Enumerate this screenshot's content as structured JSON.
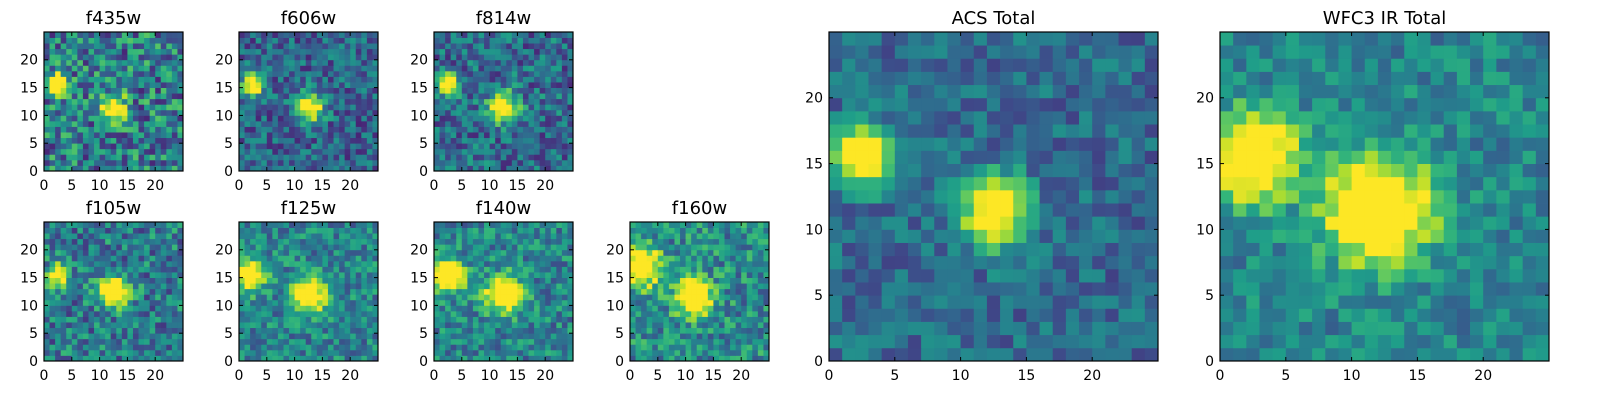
{
  "chart_data": [
    {
      "type": "heatmap",
      "title": "f435w",
      "xticks": [
        "0",
        "5",
        "10",
        "15",
        "20"
      ],
      "yticks": [
        "0",
        "5",
        "10",
        "15",
        "20"
      ],
      "xlim": [
        0,
        25
      ],
      "ylim": [
        0,
        25
      ],
      "colormap": "viridis",
      "blobs": [
        {
          "x": 2.5,
          "y": 15.5,
          "amp": 1.0,
          "sigma": 1.3
        },
        {
          "x": 12.5,
          "y": 11.5,
          "amp": 0.85,
          "sigma": 1.6
        }
      ],
      "noise": 0.32,
      "bg": 0.42
    },
    {
      "type": "heatmap",
      "title": "f606w",
      "xticks": [
        "0",
        "5",
        "10",
        "15",
        "20"
      ],
      "yticks": [
        "0",
        "5",
        "10",
        "15",
        "20"
      ],
      "xlim": [
        0,
        25
      ],
      "ylim": [
        0,
        25
      ],
      "colormap": "viridis",
      "blobs": [
        {
          "x": 2.5,
          "y": 15.5,
          "amp": 1.0,
          "sigma": 1.3
        },
        {
          "x": 12.5,
          "y": 11.5,
          "amp": 0.9,
          "sigma": 1.8
        }
      ],
      "noise": 0.22,
      "bg": 0.32
    },
    {
      "type": "heatmap",
      "title": "f814w",
      "xticks": [
        "0",
        "5",
        "10",
        "15",
        "20"
      ],
      "yticks": [
        "0",
        "5",
        "10",
        "15",
        "20"
      ],
      "xlim": [
        0,
        25
      ],
      "ylim": [
        0,
        25
      ],
      "colormap": "viridis",
      "blobs": [
        {
          "x": 2.5,
          "y": 15.5,
          "amp": 1.0,
          "sigma": 1.3
        },
        {
          "x": 12.5,
          "y": 11.5,
          "amp": 0.9,
          "sigma": 1.8
        }
      ],
      "noise": 0.24,
      "bg": 0.35
    },
    {
      "type": "heatmap",
      "title": "f105w",
      "xticks": [
        "0",
        "5",
        "10",
        "15",
        "20"
      ],
      "yticks": [
        "0",
        "5",
        "10",
        "15",
        "20"
      ],
      "xlim": [
        0,
        25
      ],
      "ylim": [
        0,
        25
      ],
      "colormap": "viridis",
      "blobs": [
        {
          "x": 2.5,
          "y": 15.5,
          "amp": 0.9,
          "sigma": 1.3
        },
        {
          "x": 12.5,
          "y": 12.5,
          "amp": 1.0,
          "sigma": 1.8
        }
      ],
      "noise": 0.26,
      "bg": 0.42
    },
    {
      "type": "heatmap",
      "title": "f125w",
      "xticks": [
        "0",
        "5",
        "10",
        "15",
        "20"
      ],
      "yticks": [
        "0",
        "5",
        "10",
        "15",
        "20"
      ],
      "xlim": [
        0,
        25
      ],
      "ylim": [
        0,
        25
      ],
      "colormap": "viridis",
      "blobs": [
        {
          "x": 2.0,
          "y": 15.5,
          "amp": 1.0,
          "sigma": 1.8
        },
        {
          "x": 12.5,
          "y": 12.0,
          "amp": 0.9,
          "sigma": 2.2
        }
      ],
      "noise": 0.22,
      "bg": 0.45
    },
    {
      "type": "heatmap",
      "title": "f140w",
      "xticks": [
        "0",
        "5",
        "10",
        "15",
        "20"
      ],
      "yticks": [
        "0",
        "5",
        "10",
        "15",
        "20"
      ],
      "xlim": [
        0,
        25
      ],
      "ylim": [
        0,
        25
      ],
      "colormap": "viridis",
      "blobs": [
        {
          "x": 2.5,
          "y": 15.5,
          "amp": 1.0,
          "sigma": 2.0
        },
        {
          "x": 12.5,
          "y": 12.0,
          "amp": 0.95,
          "sigma": 2.2
        }
      ],
      "noise": 0.22,
      "bg": 0.45
    },
    {
      "type": "heatmap",
      "title": "f160w",
      "xticks": [
        "0",
        "5",
        "10",
        "15",
        "20"
      ],
      "yticks": [
        "0",
        "5",
        "10",
        "15",
        "20"
      ],
      "xlim": [
        0,
        25
      ],
      "ylim": [
        0,
        25
      ],
      "colormap": "viridis",
      "blobs": [
        {
          "x": 2.0,
          "y": 17.0,
          "amp": 0.85,
          "sigma": 2.5
        },
        {
          "x": 11.5,
          "y": 11.5,
          "amp": 1.0,
          "sigma": 2.2
        }
      ],
      "noise": 0.24,
      "bg": 0.48
    },
    {
      "type": "heatmap",
      "title": "ACS Total",
      "xticks": [
        "0",
        "5",
        "10",
        "15",
        "20"
      ],
      "yticks": [
        "0",
        "5",
        "10",
        "15",
        "20"
      ],
      "xlim": [
        0,
        25
      ],
      "ylim": [
        0,
        25
      ],
      "colormap": "viridis",
      "blobs": [
        {
          "x": 2.5,
          "y": 15.5,
          "amp": 1.0,
          "sigma": 1.5
        },
        {
          "x": 12.5,
          "y": 11.5,
          "amp": 0.9,
          "sigma": 1.8
        }
      ],
      "noise": 0.16,
      "bg": 0.35
    },
    {
      "type": "heatmap",
      "title": "WFC3 IR Total",
      "xticks": [
        "0",
        "5",
        "10",
        "15",
        "20"
      ],
      "yticks": [
        "0",
        "5",
        "10",
        "15",
        "20"
      ],
      "xlim": [
        0,
        25
      ],
      "ylim": [
        0,
        25
      ],
      "colormap": "viridis",
      "blobs": [
        {
          "x": 2.5,
          "y": 15.5,
          "amp": 1.0,
          "sigma": 2.2
        },
        {
          "x": 12.0,
          "y": 11.5,
          "amp": 1.0,
          "sigma": 2.8
        }
      ],
      "noise": 0.16,
      "bg": 0.45
    }
  ]
}
